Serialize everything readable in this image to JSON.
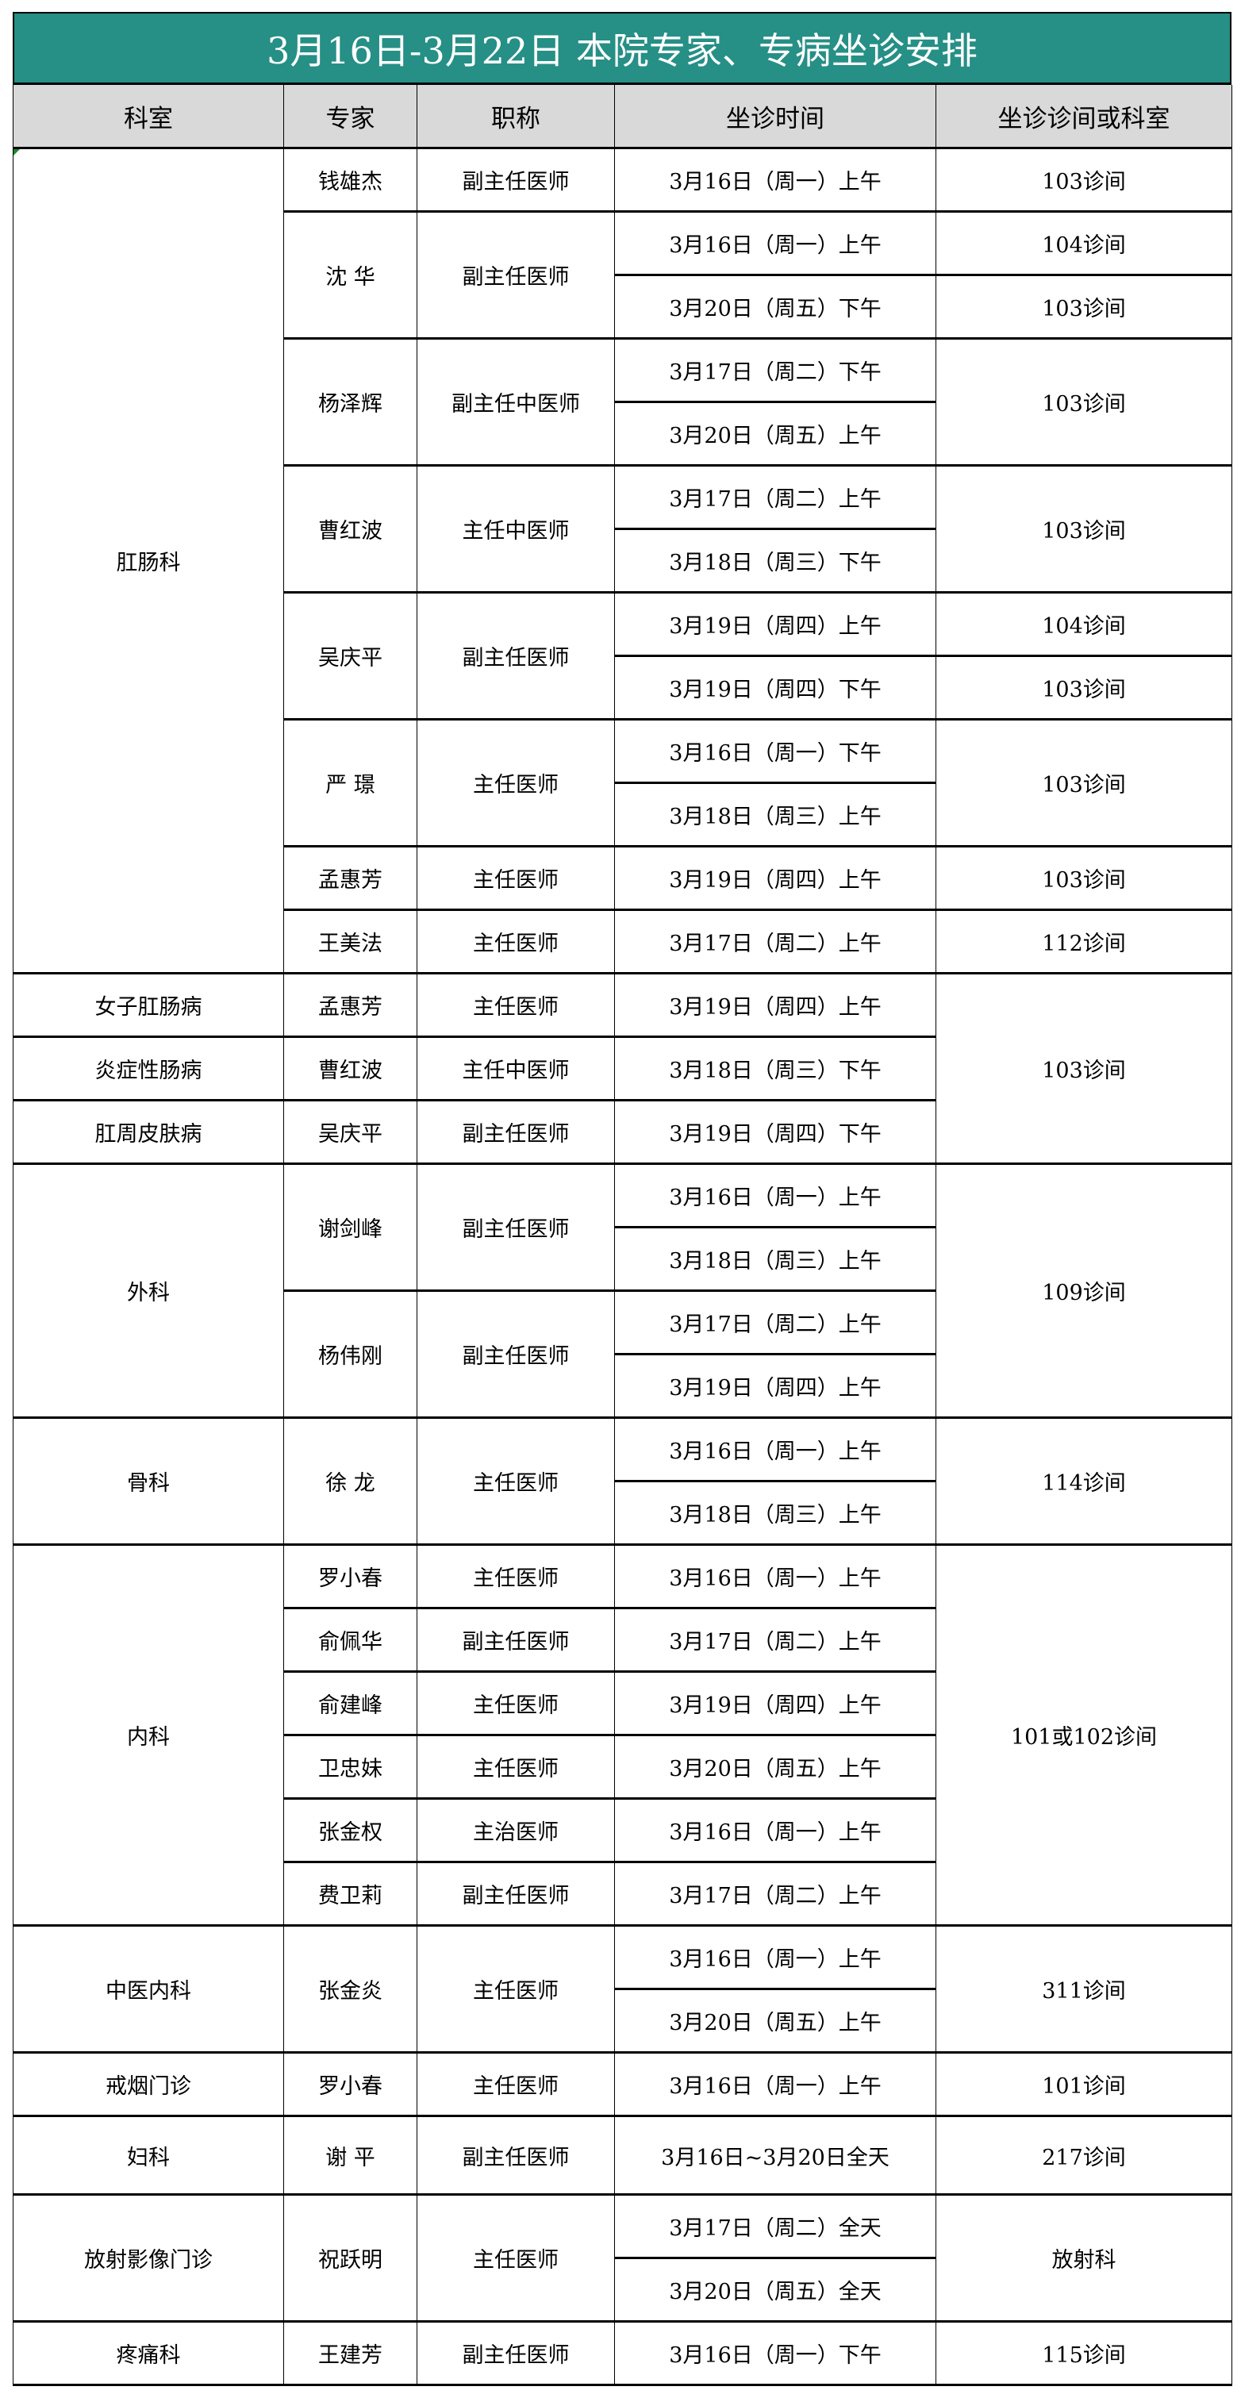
{
  "title": "3月16日-3月22日 本院专家、专病坐诊安排",
  "colors": {
    "title_bg": "#268f86",
    "header_bg": "#d9d9d9"
  },
  "headers": [
    "科室",
    "专家",
    "职称",
    "坐诊时间",
    "坐诊诊间或科室"
  ],
  "rows": [
    {
      "dept": "肛肠科",
      "expert": "钱雄杰",
      "title": "副主任医师",
      "time": "3月16日（周一）上午",
      "room": "103诊间"
    },
    {
      "expert": "沈 华",
      "title": "副主任医师",
      "time": "3月16日（周一）上午",
      "room": "104诊间"
    },
    {
      "time": "3月20日（周五）下午",
      "room": "103诊间"
    },
    {
      "expert": "杨泽辉",
      "title": "副主任中医师",
      "time": "3月17日（周二）下午",
      "room": "103诊间"
    },
    {
      "time": "3月20日（周五）上午"
    },
    {
      "expert": "曹红波",
      "title": "主任中医师",
      "time": "3月17日（周二）上午",
      "room": "103诊间"
    },
    {
      "time": "3月18日（周三）下午"
    },
    {
      "expert": "吴庆平",
      "title": "副主任医师",
      "time": "3月19日（周四）上午",
      "room": "104诊间"
    },
    {
      "time": "3月19日（周四）下午",
      "room": "103诊间"
    },
    {
      "expert": "严 璟",
      "title": "主任医师",
      "time": "3月16日（周一）下午",
      "room": "103诊间"
    },
    {
      "time": "3月18日（周三）上午"
    },
    {
      "expert": "孟惠芳",
      "title": "主任医师",
      "time": "3月19日（周四）上午",
      "room": "103诊间"
    },
    {
      "expert": "王美法",
      "title": "主任医师",
      "time": "3月17日（周二）上午",
      "room": "112诊间"
    },
    {
      "dept": "女子肛肠病",
      "expert": "孟惠芳",
      "title": "主任医师",
      "time": "3月19日（周四）上午",
      "room": "103诊间"
    },
    {
      "dept": "炎症性肠病",
      "expert": "曹红波",
      "title": "主任中医师",
      "time": "3月18日（周三）下午"
    },
    {
      "dept": "肛周皮肤病",
      "expert": "吴庆平",
      "title": "副主任医师",
      "time": "3月19日（周四）下午"
    },
    {
      "dept": "外科",
      "expert": "谢剑峰",
      "title": "副主任医师",
      "time": "3月16日（周一）上午",
      "room": "109诊间"
    },
    {
      "time": "3月18日（周三）上午"
    },
    {
      "expert": "杨伟刚",
      "title": "副主任医师",
      "time": "3月17日（周二）上午"
    },
    {
      "time": "3月19日（周四）上午"
    },
    {
      "dept": "骨科",
      "expert": "徐 龙",
      "title": "主任医师",
      "time": "3月16日（周一）上午",
      "room": "114诊间"
    },
    {
      "time": "3月18日（周三）上午"
    },
    {
      "dept": "内科",
      "expert": "罗小春",
      "title": "主任医师",
      "time": "3月16日（周一）上午",
      "room": "101或102诊间"
    },
    {
      "expert": "俞佩华",
      "title": "副主任医师",
      "time": "3月17日（周二）上午"
    },
    {
      "expert": "俞建峰",
      "title": "主任医师",
      "time": "3月19日（周四）上午"
    },
    {
      "expert": "卫忠妹",
      "title": "主任医师",
      "time": "3月20日（周五）上午"
    },
    {
      "expert": "张金权",
      "title": "主治医师",
      "time": "3月16日（周一）上午"
    },
    {
      "expert": "费卫莉",
      "title": "副主任医师",
      "time": "3月17日（周二）上午"
    },
    {
      "dept": "中医内科",
      "expert": "张金炎",
      "title": "主任医师",
      "time": "3月16日（周一）上午",
      "room": "311诊间"
    },
    {
      "time": "3月20日（周五）上午"
    },
    {
      "dept": "戒烟门诊",
      "expert": "罗小春",
      "title": "主任医师",
      "time": "3月16日（周一）上午",
      "room": "101诊间"
    },
    {
      "dept": "妇科",
      "expert": "谢 平",
      "title": "副主任医师",
      "time": "3月16日~3月20日全天",
      "room": "217诊间"
    },
    {
      "dept": "放射影像门诊",
      "expert": "祝跃明",
      "title": "主任医师",
      "time": "3月17日（周二）全天",
      "room": "放射科"
    },
    {
      "time": "3月20日（周五）全天"
    },
    {
      "dept": "疼痛科",
      "expert": "王建芳",
      "title": "副主任医师",
      "time": "3月16日（周一）下午",
      "room": "115诊间"
    }
  ]
}
